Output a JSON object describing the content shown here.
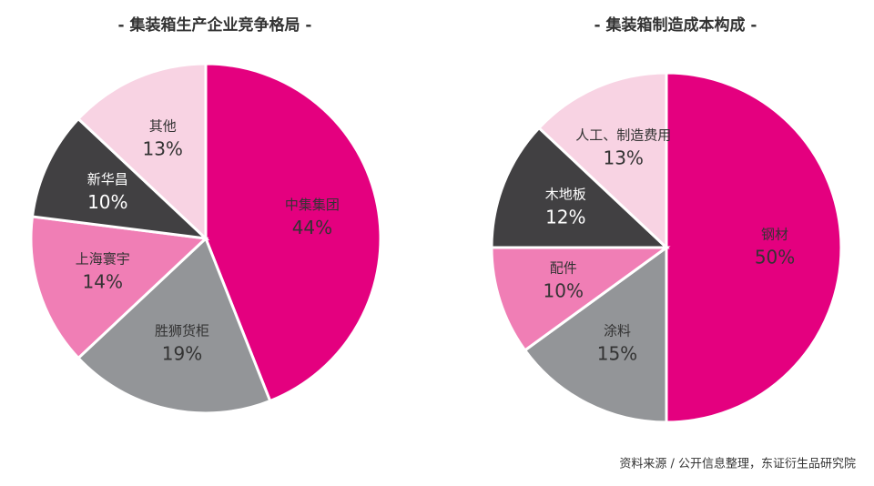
{
  "chart_data": [
    {
      "type": "pie",
      "title": "- 集装箱生产企业竞争格局 -",
      "categories": [
        "中集集团",
        "胜狮货柜",
        "上海寰宇",
        "新华昌",
        "其他"
      ],
      "values": [
        44,
        19,
        14,
        10,
        13
      ],
      "value_labels": [
        "44%",
        "19%",
        "14%",
        "10%",
        "13%"
      ],
      "colors": [
        "#e4007f",
        "#939598",
        "#f07eb5",
        "#414042",
        "#f8d3e3"
      ]
    },
    {
      "type": "pie",
      "title": "- 集装箱制造成本构成 -",
      "categories": [
        "钢材",
        "涂料",
        "配件",
        "木地板",
        "人工、制造费用"
      ],
      "values": [
        50,
        15,
        10,
        12,
        13
      ],
      "value_labels": [
        "50%",
        "15%",
        "10%",
        "12%",
        "13%"
      ],
      "colors": [
        "#e4007f",
        "#939598",
        "#f07eb5",
        "#414042",
        "#f8d3e3"
      ]
    }
  ],
  "source": "资料来源 / 公开信息整理，东证衍生品研究院"
}
